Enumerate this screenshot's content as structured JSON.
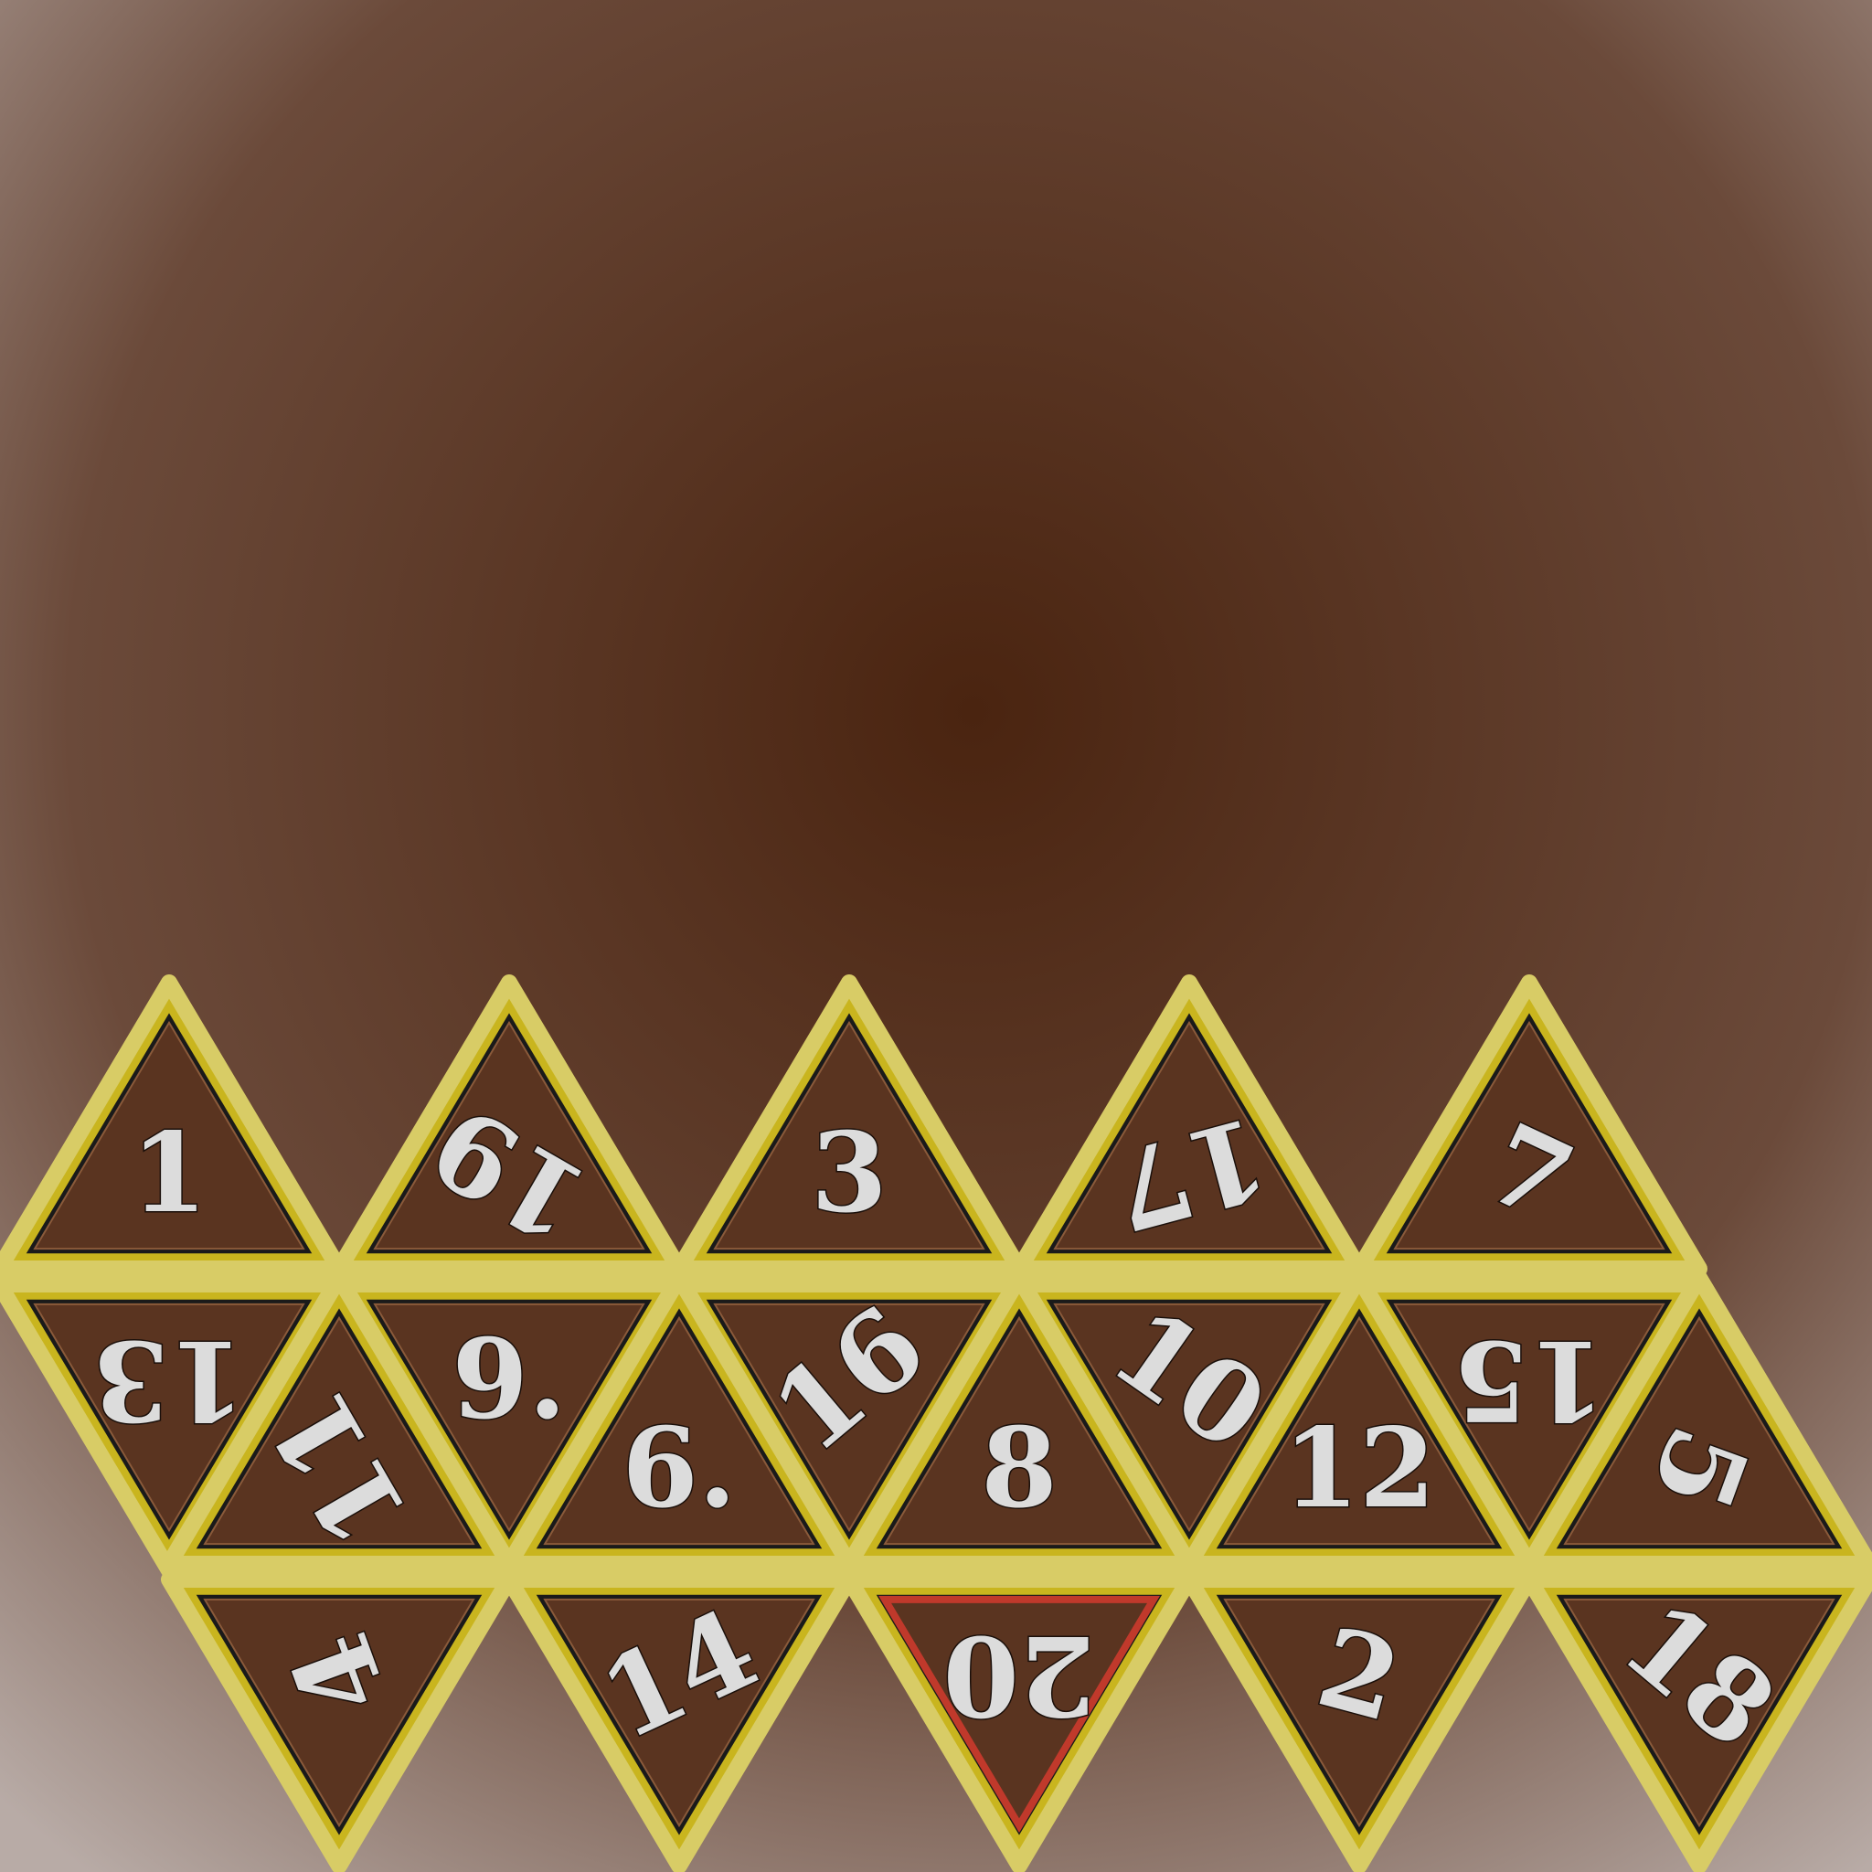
{
  "game": {
    "net": "d20-unfolded-net",
    "colors": {
      "bg_center": "#4a2410",
      "bg_mid": "#6b4a3a",
      "bg_edge": "#b8aba6",
      "frame": "#c9b51e",
      "frame_light": "#d8cc66",
      "face_fill": "#5a3420",
      "face_fill_light": "#7a5a48",
      "inner_border": "#1a1a1a",
      "number": "#dcdcdc",
      "highlight": "#c0392b"
    },
    "faces": [
      {
        "label": "1",
        "rotate": 0
      },
      {
        "label": "19",
        "rotate": 210
      },
      {
        "label": "3",
        "rotate": 0
      },
      {
        "label": "17",
        "rotate": 165
      },
      {
        "label": "7",
        "rotate": 25
      },
      {
        "label": "13",
        "rotate": 180
      },
      {
        "label": "9.",
        "rotate": 0
      },
      {
        "label": "16",
        "rotate": -40
      },
      {
        "label": "10",
        "rotate": 35
      },
      {
        "label": "15",
        "rotate": 180
      },
      {
        "label": "11",
        "rotate": 240
      },
      {
        "label": "6.",
        "rotate": 0
      },
      {
        "label": "8",
        "rotate": 0
      },
      {
        "label": "12",
        "rotate": 0
      },
      {
        "label": "5",
        "rotate": 110
      },
      {
        "label": "4",
        "rotate": 250
      },
      {
        "label": "14",
        "rotate": -25
      },
      {
        "label": "20",
        "rotate": 180,
        "highlight": true
      },
      {
        "label": "2",
        "rotate": 15
      },
      {
        "label": "18",
        "rotate": 40
      }
    ]
  }
}
